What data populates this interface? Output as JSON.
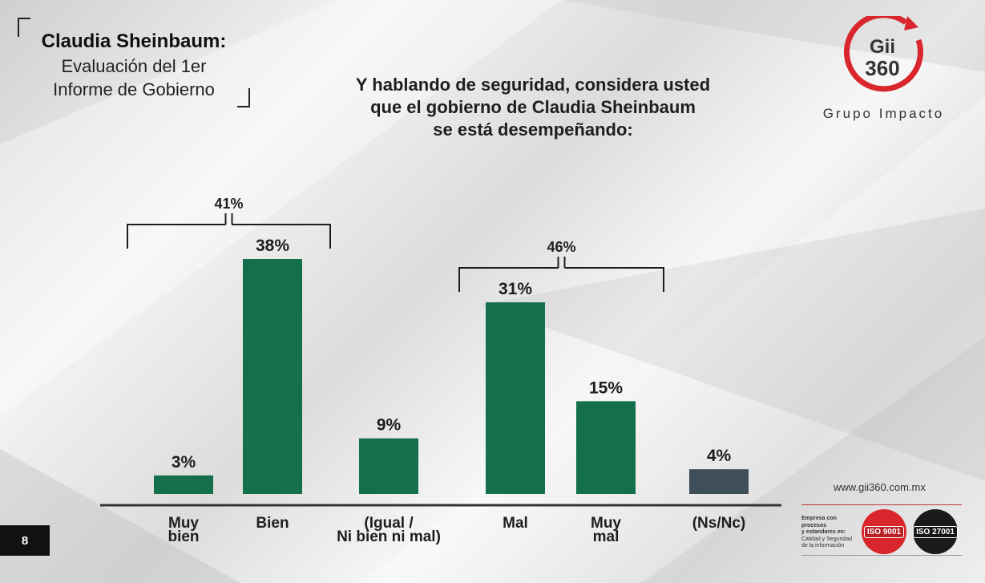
{
  "header": {
    "title": "Claudia Sheinbaum:",
    "subtitle_line1": "Evaluación del 1er",
    "subtitle_line2": "Informe de Gobierno"
  },
  "question": {
    "line1": "Y hablando de seguridad, considera usted",
    "line2": "que el gobierno de Claudia Sheinbaum",
    "line3": "se está desempeñando:"
  },
  "logo": {
    "line1": "Gii",
    "line2": "360",
    "name": "Grupo Impacto",
    "accent": "#d9262c"
  },
  "page_number": "8",
  "footer": {
    "url": "www.gii360.com.mx",
    "cert_line1": "Empresa con procesos",
    "cert_line2": "y estandares en:",
    "cert_line3": "Calidad y Seguridad",
    "cert_line4": "de la información",
    "iso1": "ISO 9001",
    "iso2": "ISO 27001"
  },
  "chart_data": {
    "type": "bar",
    "categories": [
      [
        "Muy",
        "bien"
      ],
      [
        "Bien"
      ],
      [
        "(Igual /",
        "Ni bien ni mal)"
      ],
      [
        "Mal"
      ],
      [
        "Muy",
        "mal"
      ],
      [
        "(Ns/Nc)"
      ]
    ],
    "values": [
      3,
      38,
      9,
      31,
      15,
      4
    ],
    "value_labels": [
      "3%",
      "38%",
      "9%",
      "31%",
      "15%",
      "4%"
    ],
    "colors": [
      "#14704a",
      "#14704a",
      "#14704a",
      "#14704a",
      "#14704a",
      "#3f4f5a"
    ],
    "groups": [
      {
        "label": "41%",
        "from": 0,
        "to": 1
      },
      {
        "label": "46%",
        "from": 3,
        "to": 4
      }
    ],
    "ylim": [
      0,
      40
    ],
    "grid": false
  }
}
